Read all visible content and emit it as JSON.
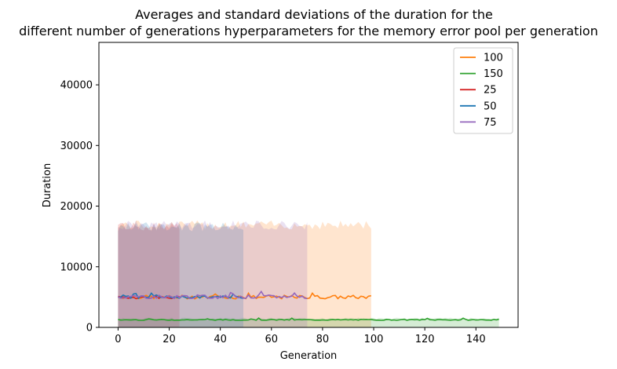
{
  "chart_data": {
    "type": "line",
    "title_lines": [
      "Averages and standard deviations of the duration for the",
      "different number of generations hyperparameters for the memory error pool per generation"
    ],
    "xlabel": "Generation",
    "ylabel": "Duration",
    "xlim": [
      -7.5,
      156.5
    ],
    "ylim": [
      0,
      47000
    ],
    "xticks": [
      0,
      20,
      40,
      60,
      80,
      100,
      120,
      140
    ],
    "yticks": [
      0,
      10000,
      20000,
      30000,
      40000
    ],
    "grid": false,
    "legend_position": "top-right",
    "series": [
      {
        "name": "100",
        "color": "#ff7f0e",
        "length": 100,
        "mean": 5000,
        "std_upper": 16600,
        "noise": 300
      },
      {
        "name": "150",
        "color": "#2ca02c",
        "length": 150,
        "mean": 1250,
        "std_upper": 1400,
        "noise": 80
      },
      {
        "name": "25",
        "color": "#d62728",
        "length": 25,
        "mean": 4950,
        "std_upper": 16300,
        "noise": 200
      },
      {
        "name": "50",
        "color": "#1f77b4",
        "length": 50,
        "mean": 5000,
        "std_upper": 16300,
        "noise": 200
      },
      {
        "name": "75",
        "color": "#9467bd",
        "length": 75,
        "mean": 5050,
        "std_upper": 16600,
        "noise": 300
      }
    ]
  }
}
